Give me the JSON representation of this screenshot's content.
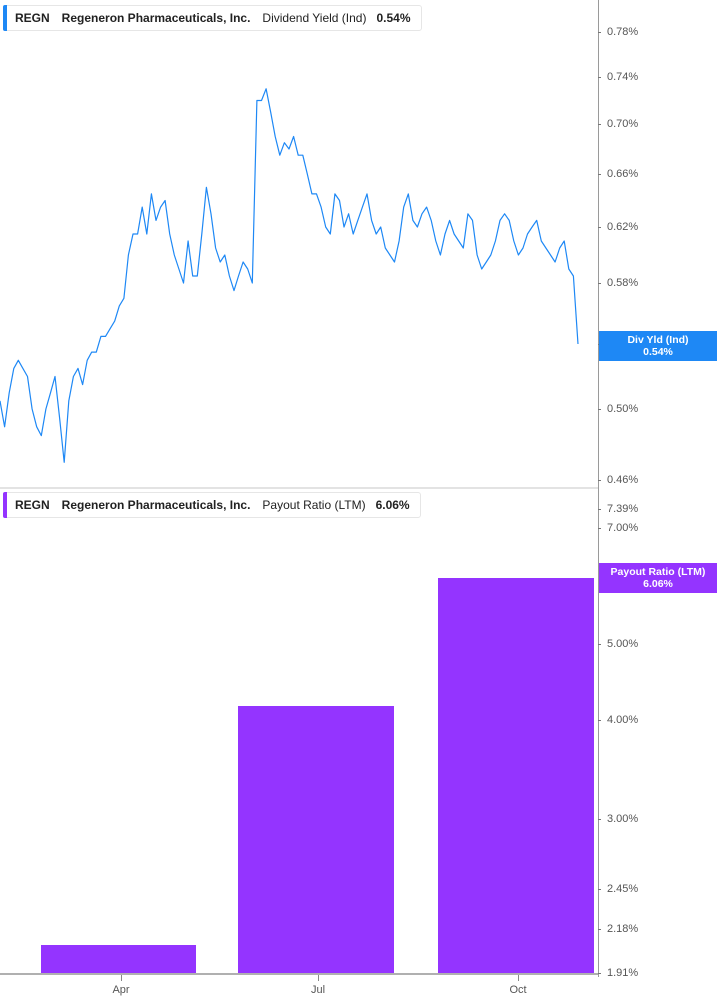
{
  "top_panel": {
    "legend": {
      "ticker": "REGN",
      "company": "Regeneron Pharmaceuticals, Inc.",
      "metric": "Dividend Yield (Ind)",
      "value": "0.54%",
      "color": "#1e88f5"
    },
    "y_ticks": [
      "0.78%",
      "0.74%",
      "0.70%",
      "0.66%",
      "0.62%",
      "0.58%",
      "0.54%",
      "0.50%",
      "0.46%"
    ],
    "badge": {
      "label": "Div Yld (Ind)",
      "value": "0.54%",
      "color": "#1e88f5"
    }
  },
  "bottom_panel": {
    "legend": {
      "ticker": "REGN",
      "company": "Regeneron Pharmaceuticals, Inc.",
      "metric": "Payout Ratio (LTM)",
      "value": "6.06%",
      "color": "#9434ff"
    },
    "y_ticks": [
      "7.39%",
      "7.00%",
      "5.00%",
      "4.00%",
      "3.00%",
      "2.45%",
      "2.18%",
      "1.91%"
    ],
    "badge": {
      "label": "Payout Ratio (LTM)",
      "value": "6.06%",
      "color": "#9434ff"
    }
  },
  "x_axis": {
    "labels": [
      "Apr",
      "Jul",
      "Oct"
    ]
  },
  "chart_data": [
    {
      "type": "line",
      "title": "REGN Regeneron Pharmaceuticals, Inc. Dividend Yield (Ind) 0.54%",
      "series": [
        {
          "name": "Dividend Yield (Ind)",
          "color": "#1e88f5",
          "values": [
            0.505,
            0.49,
            0.51,
            0.525,
            0.53,
            0.525,
            0.52,
            0.5,
            0.49,
            0.485,
            0.5,
            0.51,
            0.52,
            0.495,
            0.47,
            0.505,
            0.52,
            0.525,
            0.515,
            0.53,
            0.535,
            0.535,
            0.545,
            0.545,
            0.55,
            0.555,
            0.565,
            0.57,
            0.6,
            0.615,
            0.615,
            0.635,
            0.615,
            0.645,
            0.625,
            0.635,
            0.64,
            0.615,
            0.6,
            0.59,
            0.58,
            0.61,
            0.585,
            0.585,
            0.615,
            0.65,
            0.63,
            0.605,
            0.595,
            0.6,
            0.585,
            0.575,
            0.585,
            0.595,
            0.59,
            0.58,
            0.72,
            0.72,
            0.73,
            0.71,
            0.69,
            0.675,
            0.685,
            0.68,
            0.69,
            0.675,
            0.675,
            0.66,
            0.645,
            0.645,
            0.635,
            0.62,
            0.615,
            0.645,
            0.64,
            0.62,
            0.63,
            0.615,
            0.625,
            0.635,
            0.645,
            0.625,
            0.615,
            0.62,
            0.605,
            0.6,
            0.595,
            0.61,
            0.635,
            0.645,
            0.625,
            0.62,
            0.63,
            0.635,
            0.625,
            0.61,
            0.6,
            0.615,
            0.625,
            0.615,
            0.61,
            0.605,
            0.63,
            0.625,
            0.6,
            0.59,
            0.595,
            0.6,
            0.61,
            0.625,
            0.63,
            0.625,
            0.61,
            0.6,
            0.605,
            0.615,
            0.62,
            0.625,
            0.61,
            0.605,
            0.6,
            0.595,
            0.605,
            0.61,
            0.59,
            0.585,
            0.54
          ]
        }
      ],
      "xlabel": "",
      "ylabel": "",
      "y_tick_labels": [
        "0.78%",
        "0.74%",
        "0.70%",
        "0.66%",
        "0.62%",
        "0.58%",
        "0.54%",
        "0.50%",
        "0.46%"
      ],
      "ylim": [
        0.46,
        0.8
      ],
      "last_value": "0.54%"
    },
    {
      "type": "bar",
      "title": "REGN Regeneron Pharmaceuticals, Inc. Payout Ratio (LTM) 6.06%",
      "categories": [
        "Apr",
        "Jul",
        "Oct"
      ],
      "series": [
        {
          "name": "Payout Ratio (LTM)",
          "color": "#9434ff",
          "values": [
            2.08,
            4.18,
            6.06
          ]
        }
      ],
      "xlabel": "",
      "ylabel": "",
      "y_tick_labels": [
        "7.39%",
        "7.00%",
        "5.00%",
        "4.00%",
        "3.00%",
        "2.45%",
        "2.18%",
        "1.91%"
      ],
      "ylim": [
        1.91,
        7.39
      ],
      "y_scale": "log"
    }
  ]
}
